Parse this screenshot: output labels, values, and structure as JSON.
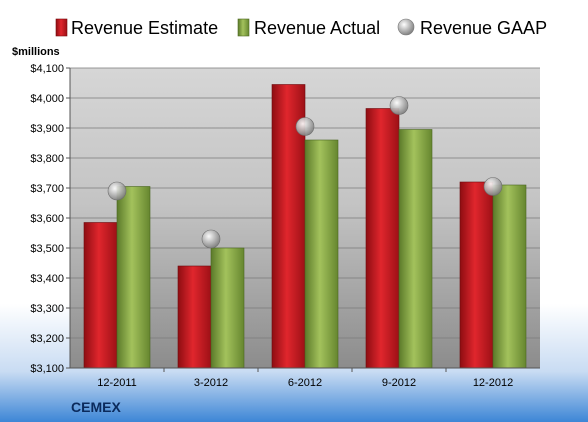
{
  "company": "CEMEX",
  "chart_data": {
    "type": "bar",
    "title": "",
    "xlabel": "",
    "ylabel": "$millions",
    "categories": [
      "12-2011",
      "3-2012",
      "6-2012",
      "9-2012",
      "12-2012"
    ],
    "ylim": [
      3100,
      4100
    ],
    "yticks": [
      3100,
      3200,
      3300,
      3400,
      3500,
      3600,
      3700,
      3800,
      3900,
      4000,
      4100
    ],
    "ytick_labels": [
      "$3,100",
      "$3,200",
      "$3,300",
      "$3,400",
      "$3,500",
      "$3,600",
      "$3,700",
      "$3,800",
      "$3,900",
      "$4,000",
      "$4,100"
    ],
    "grid": true,
    "legend_position": "top",
    "series": [
      {
        "name": "Revenue Estimate",
        "kind": "bar",
        "color": "#c8161d",
        "values": [
          3585,
          3440,
          4045,
          3965,
          3720
        ]
      },
      {
        "name": "Revenue Actual",
        "kind": "bar",
        "color": "#7a9a3c",
        "values": [
          3705,
          3500,
          3860,
          3895,
          3710
        ]
      },
      {
        "name": "Revenue GAAP",
        "kind": "marker",
        "color": "#a0a0a0",
        "values": [
          3690,
          3530,
          3905,
          3975,
          3705
        ]
      }
    ]
  }
}
